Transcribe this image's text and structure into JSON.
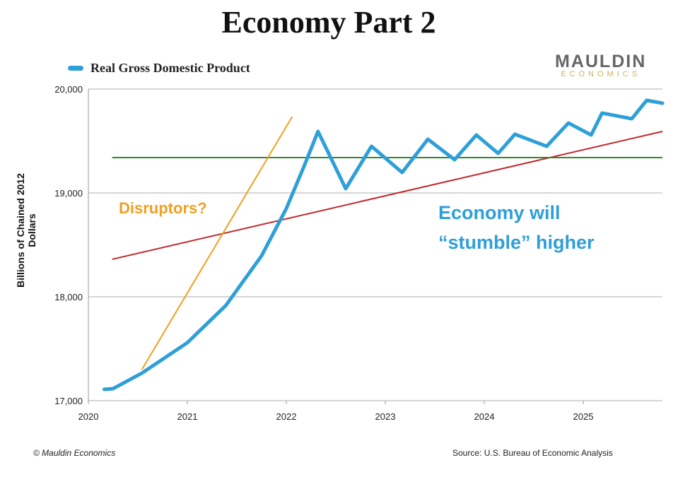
{
  "chart_data": {
    "type": "line",
    "title": "Economy Part 2",
    "ylabel": "Billions of Chained 2012 Dollars",
    "xlabel": "",
    "xlim": [
      2020,
      2025.8
    ],
    "ylim": [
      17000,
      20000
    ],
    "xticks": [
      "2020",
      "2021",
      "2022",
      "2023",
      "2024",
      "2025"
    ],
    "yticks": [
      "17,000",
      "18,000",
      "19,000",
      "20,000"
    ],
    "grid": "horizontal",
    "legend_placement": "top-left",
    "series": [
      {
        "name": "Real Gross Domestic Product",
        "color": "#2e9fd8",
        "x": [
          2020.16,
          2020.25,
          2020.54,
          2021.0,
          2021.39,
          2021.75,
          2022.0,
          2022.18,
          2022.32,
          2022.6,
          2022.86,
          2023.17,
          2023.43,
          2023.7,
          2023.92,
          2024.14,
          2024.31,
          2024.63,
          2024.85,
          2025.08,
          2025.19,
          2025.49,
          2025.64,
          2025.8
        ],
        "y": [
          17109,
          17116,
          17265,
          17558,
          17918,
          18395,
          18850,
          19259,
          19592,
          19041,
          19449,
          19197,
          19517,
          19320,
          19558,
          19381,
          19565,
          19449,
          19673,
          19558,
          19769,
          19714,
          19891,
          19864
        ]
      }
    ],
    "reference_lines": [
      {
        "color": "#c0282d",
        "x": [
          2020.24,
          2025.8
        ],
        "y": [
          18361,
          19592
        ]
      },
      {
        "color": "#2e8b2e",
        "x": [
          2020.24,
          2025.8
        ],
        "y": [
          19340,
          19340
        ]
      },
      {
        "color": "#f0a020",
        "x": [
          2020.54,
          2022.06
        ],
        "y": [
          17299,
          19735
        ]
      }
    ],
    "annotations": [
      {
        "text": "Disruptors?",
        "color": "#f0a020"
      },
      {
        "text_line1": "Economy will",
        "text_line2": "“stumble” higher",
        "color": "#2e9fd8"
      }
    ]
  },
  "logo": {
    "line1": "MAULDIN",
    "line2": "ECONOMICS"
  },
  "footer": {
    "copyright": "© Mauldin Economics",
    "source": "Source: U.S. Bureau of Economic Analysis"
  }
}
